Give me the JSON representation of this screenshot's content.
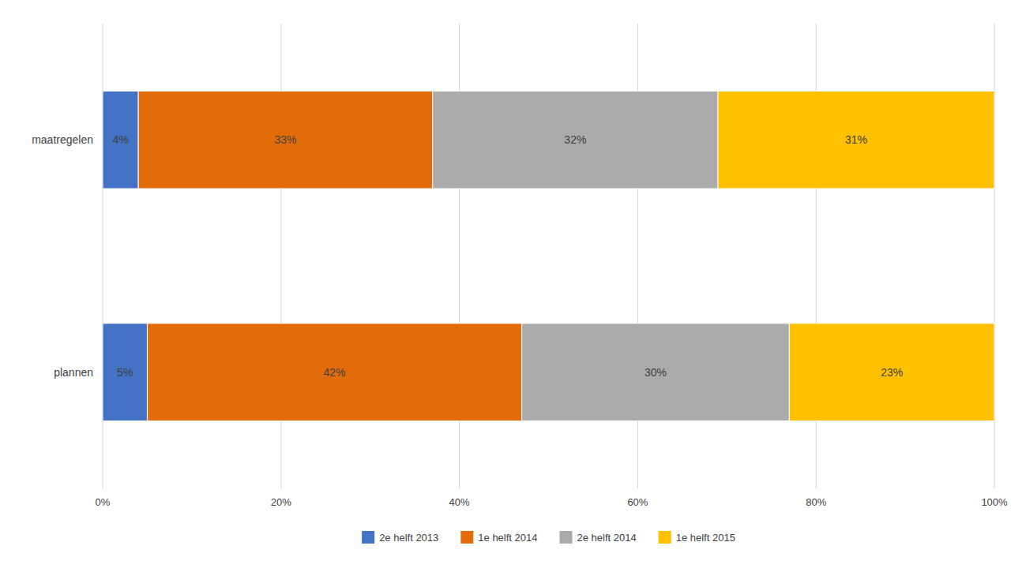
{
  "chart_data": {
    "type": "bar",
    "orientation": "horizontal",
    "stacked": true,
    "categories": [
      "maatregelen",
      "plannen"
    ],
    "series": [
      {
        "name": "2e helft 2013",
        "color": "#4472C4",
        "values": [
          4,
          5
        ],
        "value_labels": [
          "4%",
          "5%"
        ]
      },
      {
        "name": "1e helft 2014",
        "color": "#E36C0A",
        "values": [
          33,
          42
        ],
        "value_labels": [
          "33%",
          "42%"
        ]
      },
      {
        "name": "2e helft 2014",
        "color": "#ABABAB",
        "values": [
          32,
          30
        ],
        "value_labels": [
          "32%",
          "30%"
        ]
      },
      {
        "name": "1e helft 2015",
        "color": "#FFC000",
        "values": [
          31,
          23
        ],
        "value_labels": [
          "31%",
          "23%"
        ]
      }
    ],
    "xlim": [
      0,
      100
    ],
    "xticks": [
      {
        "value": 0,
        "label": "0%"
      },
      {
        "value": 20,
        "label": "20%"
      },
      {
        "value": 40,
        "label": "40%"
      },
      {
        "value": 60,
        "label": "60%"
      },
      {
        "value": 80,
        "label": "80%"
      },
      {
        "value": 100,
        "label": "100%"
      }
    ],
    "grid": true,
    "data_labels": true,
    "legend": "bottom"
  }
}
